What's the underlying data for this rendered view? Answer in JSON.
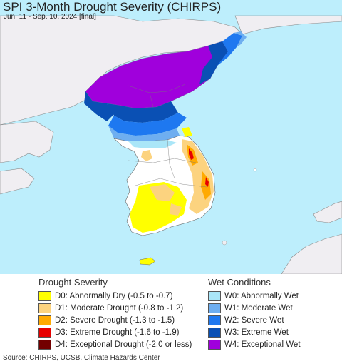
{
  "header": {
    "title": "SPI 3-Month Drought Severity (CHIRPS)",
    "subtitle": "Jun. 11 - Sep. 10, 2024 [final]"
  },
  "colors": {
    "water": "#bdeefc",
    "land": "#f0eef2",
    "normal": "#ffffff"
  },
  "legend": {
    "drought": {
      "title": "Drought Severity",
      "items": [
        {
          "label": "D0: Abnormally Dry (-0.5 to -0.7)",
          "color": "#ffff00"
        },
        {
          "label": "D1: Moderate Drought (-0.8 to -1.2)",
          "color": "#fcd37f"
        },
        {
          "label": "D2: Severe Drought (-1.3 to -1.5)",
          "color": "#ffaa00"
        },
        {
          "label": "D3: Extreme Drought (-1.6 to -1.9)",
          "color": "#e60000"
        },
        {
          "label": "D4: Exceptional Drought (-2.0 or less)",
          "color": "#730000"
        }
      ]
    },
    "wet": {
      "title": "Wet Conditions",
      "items": [
        {
          "label": "W0: Abnormally Wet",
          "color": "#aae6f8"
        },
        {
          "label": "W1: Moderate Wet",
          "color": "#6eaef0"
        },
        {
          "label": "W2: Severe Wet",
          "color": "#1e78f0"
        },
        {
          "label": "W3: Extreme Wet",
          "color": "#0a50b4"
        },
        {
          "label": "W4: Exceptional Wet",
          "color": "#a000dc"
        }
      ]
    }
  },
  "footer": {
    "source": "Source: CHIRPS, UCSB, Climate Hazards Center"
  }
}
